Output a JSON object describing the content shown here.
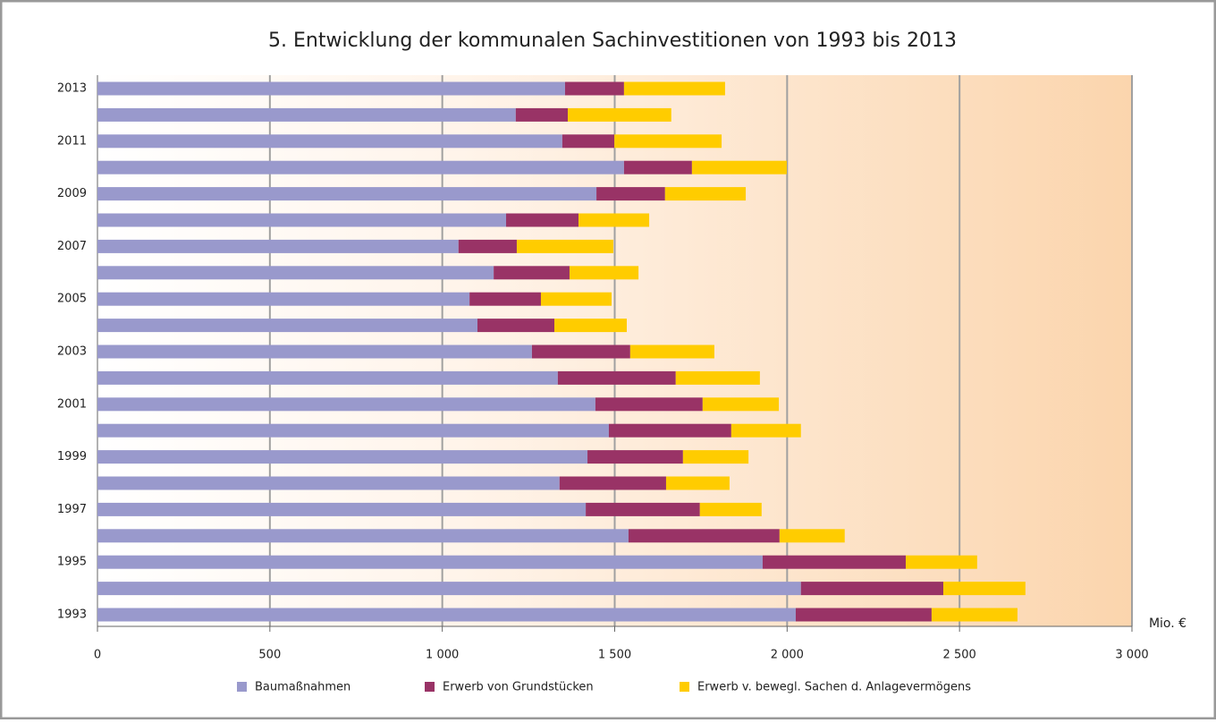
{
  "chart_data": {
    "type": "stacked_bar_horizontal",
    "title": "5. Entwicklung der kommunalen Sachinvestitionen von 1993 bis 2013",
    "x_label": "Mio. €",
    "categories": [
      "1993",
      null,
      "1995",
      null,
      "1997",
      null,
      "1999",
      null,
      "2001",
      null,
      "2003",
      null,
      "2005",
      null,
      "2007",
      null,
      "2009",
      null,
      "2011",
      null,
      "2013"
    ],
    "series": [
      {
        "name": "Baumaßnahmen",
        "color": "#9999cc",
        "values": [
          2025,
          2040,
          1929,
          1540,
          1416,
          1340,
          1421,
          1483,
          1444,
          1335,
          1260,
          1102,
          1079,
          1149,
          1047,
          1185,
          1447,
          1527,
          1348,
          1213,
          1356
        ]
      },
      {
        "name": "Erwerb von Grundstücken",
        "color": "#993366",
        "values": [
          394,
          413,
          415,
          438,
          331,
          309,
          277,
          355,
          311,
          342,
          285,
          223,
          207,
          220,
          169,
          210,
          199,
          197,
          151,
          151,
          171
        ]
      },
      {
        "name": "Erwerb v. bewegl. Sachen d. Anlagevermögens",
        "color": "#ffcc00",
        "values": [
          249,
          238,
          207,
          189,
          179,
          184,
          190,
          202,
          221,
          244,
          244,
          210,
          205,
          200,
          280,
          205,
          234,
          275,
          311,
          300,
          293
        ]
      }
    ],
    "xlim": [
      0,
      3000
    ],
    "xticks": [
      0,
      500,
      {
        "value": 1000,
        "label": "1 000"
      },
      {
        "value": 1500,
        "label": "1 500"
      },
      {
        "value": 2000,
        "label": "2 000"
      },
      {
        "value": 2500,
        "label": "2 500"
      },
      {
        "value": 3000,
        "label": "3 000"
      }
    ],
    "grid": true,
    "legend": "bottom"
  }
}
